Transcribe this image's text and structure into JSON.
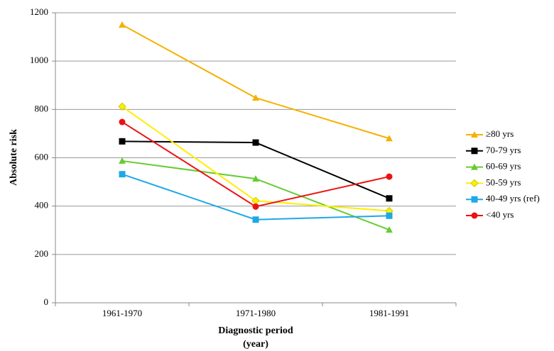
{
  "chart_data": {
    "type": "line",
    "ylabel": "Absolute risk",
    "xlabel": [
      "Diagnostic period",
      "(year)"
    ],
    "categories": [
      "1961-1970",
      "1971-1980",
      "1981-1991"
    ],
    "ylim": [
      0,
      1200
    ],
    "yticks": [
      0,
      200,
      400,
      600,
      800,
      1000,
      1200
    ],
    "grid": true,
    "legend": "right",
    "series": [
      {
        "name": "≥80 yrs",
        "color": "#f5b100",
        "marker": "triangle",
        "values": [
          1150,
          848,
          680
        ]
      },
      {
        "name": "70-79 yrs",
        "color": "#000000",
        "marker": "square",
        "values": [
          668,
          663,
          432
        ]
      },
      {
        "name": "60-69 yrs",
        "color": "#66cc33",
        "marker": "triangle",
        "values": [
          587,
          513,
          302
        ]
      },
      {
        "name": "50-59 yrs",
        "color": "#ffee00",
        "marker": "diamond",
        "values": [
          812,
          422,
          380
        ]
      },
      {
        "name": "40-49 yrs (ref)",
        "color": "#1ea8e6",
        "marker": "square",
        "values": [
          532,
          344,
          360
        ]
      },
      {
        "name": "<40 yrs",
        "color": "#ee1111",
        "marker": "circle",
        "values": [
          748,
          398,
          522
        ]
      }
    ]
  }
}
